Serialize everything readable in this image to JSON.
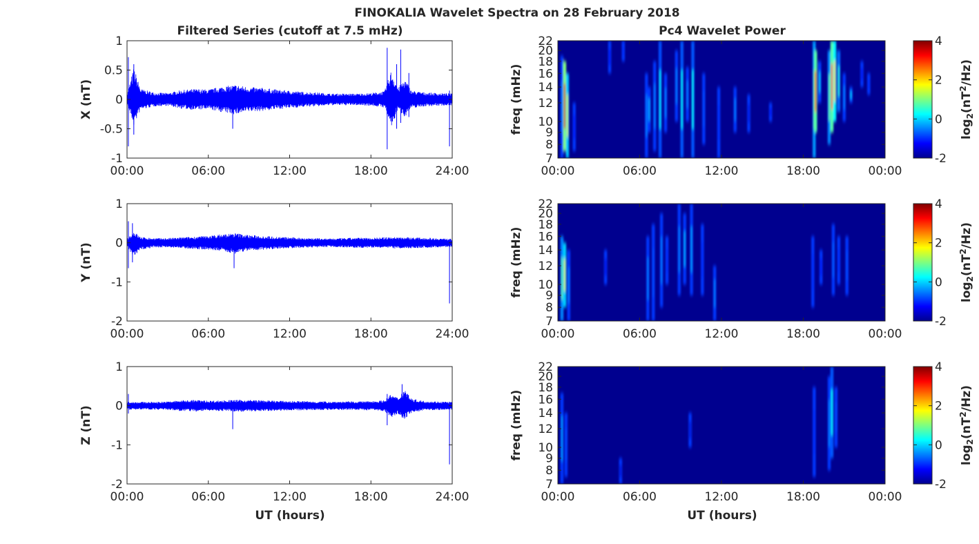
{
  "figure_title": "FINOKALIA Wavelet Spectra on 28 February 2018",
  "left_column_title": "Filtered Series (cutoff at 7.5 mHz)",
  "right_column_title": "Pc4 Wavelet Power",
  "xlabel": "UT (hours)",
  "colors": {
    "series": "#0000ff",
    "spectrogram_background": "#00008f",
    "axis": "#262626"
  },
  "chart_data": [
    {
      "type": "line",
      "component": "X",
      "ylabel": "X (nT)",
      "color": "#0000ff",
      "ylim": [
        -1,
        1
      ],
      "yticks": [
        "1",
        "0.5",
        "0",
        "-0.5",
        "-1"
      ],
      "ytick_values": [
        1,
        0.5,
        0,
        -0.5,
        -1
      ],
      "xlim_hours": [
        0,
        24
      ],
      "xticks": [
        "00:00",
        "06:00",
        "12:00",
        "18:00",
        "24:00"
      ],
      "xtick_hours": [
        0,
        6,
        12,
        18,
        24
      ],
      "envelope": {
        "hours": [
          0,
          0.5,
          1,
          2,
          3,
          4,
          5,
          6,
          7,
          8,
          9,
          10,
          11,
          12,
          13,
          14,
          15,
          16,
          17,
          18,
          19,
          19.5,
          20,
          20.5,
          21,
          22,
          23,
          24
        ],
        "upper": [
          0.08,
          0.55,
          0.18,
          0.12,
          0.11,
          0.16,
          0.18,
          0.17,
          0.22,
          0.25,
          0.21,
          0.2,
          0.17,
          0.15,
          0.13,
          0.12,
          0.1,
          0.1,
          0.1,
          0.11,
          0.14,
          0.5,
          0.2,
          0.35,
          0.15,
          0.12,
          0.11,
          0.1
        ],
        "lower": [
          -0.08,
          -0.45,
          -0.18,
          -0.12,
          -0.11,
          -0.16,
          -0.18,
          -0.17,
          -0.22,
          -0.26,
          -0.21,
          -0.2,
          -0.17,
          -0.15,
          -0.13,
          -0.12,
          -0.1,
          -0.1,
          -0.1,
          -0.11,
          -0.14,
          -0.5,
          -0.18,
          -0.3,
          -0.15,
          -0.12,
          -0.11,
          -0.1
        ]
      },
      "spikes": [
        [
          0.1,
          -0.8,
          0.72
        ],
        [
          0.5,
          -0.6,
          0.6
        ],
        [
          7.8,
          -0.5,
          0.1
        ],
        [
          19.2,
          -0.85,
          0.88
        ],
        [
          19.9,
          -0.5,
          0.6
        ],
        [
          20.2,
          -0.4,
          0.85
        ],
        [
          20.8,
          -0.3,
          0.45
        ],
        [
          23.8,
          -0.8,
          0.15
        ]
      ]
    },
    {
      "type": "line",
      "component": "Y",
      "ylabel": "Y (nT)",
      "color": "#0000ff",
      "ylim": [
        -2,
        1
      ],
      "yticks": [
        "1",
        "0",
        "-1",
        "-2"
      ],
      "ytick_values": [
        1,
        0,
        -1,
        -2
      ],
      "xlim_hours": [
        0,
        24
      ],
      "xticks": [
        "00:00",
        "06:00",
        "12:00",
        "18:00",
        "24:00"
      ],
      "xtick_hours": [
        0,
        6,
        12,
        18,
        24
      ],
      "envelope": {
        "hours": [
          0,
          0.5,
          1,
          2,
          3,
          4,
          5,
          6,
          7,
          8,
          9,
          10,
          11,
          12,
          13,
          14,
          15,
          16,
          17,
          18,
          19,
          20,
          21,
          22,
          23,
          24
        ],
        "upper": [
          0.1,
          0.3,
          0.15,
          0.12,
          0.12,
          0.14,
          0.16,
          0.18,
          0.22,
          0.25,
          0.2,
          0.18,
          0.16,
          0.14,
          0.13,
          0.12,
          0.11,
          0.12,
          0.13,
          0.13,
          0.14,
          0.15,
          0.14,
          0.13,
          0.12,
          0.1
        ],
        "lower": [
          -0.1,
          -0.4,
          -0.18,
          -0.12,
          -0.12,
          -0.14,
          -0.16,
          -0.18,
          -0.22,
          -0.28,
          -0.2,
          -0.18,
          -0.16,
          -0.14,
          -0.13,
          -0.12,
          -0.11,
          -0.12,
          -0.13,
          -0.13,
          -0.14,
          -0.15,
          -0.14,
          -0.13,
          -0.12,
          -0.1
        ]
      },
      "spikes": [
        [
          0.1,
          -0.65,
          0.55
        ],
        [
          0.4,
          -0.5,
          0.5
        ],
        [
          7.9,
          -0.65,
          0.1
        ],
        [
          23.8,
          -1.55,
          0.1
        ]
      ]
    },
    {
      "type": "line",
      "component": "Z",
      "ylabel": "Z (nT)",
      "color": "#0000ff",
      "ylim": [
        -2,
        1
      ],
      "yticks": [
        "1",
        "0",
        "-1",
        "-2"
      ],
      "ytick_values": [
        1,
        0,
        -1,
        -2
      ],
      "xlim_hours": [
        0,
        24
      ],
      "xticks": [
        "00:00",
        "06:00",
        "12:00",
        "18:00",
        "24:00"
      ],
      "xtick_hours": [
        0,
        6,
        12,
        18,
        24
      ],
      "envelope": {
        "hours": [
          0,
          1,
          2,
          3,
          4,
          5,
          6,
          7,
          8,
          9,
          10,
          11,
          12,
          13,
          14,
          15,
          16,
          17,
          18,
          19,
          19.5,
          20,
          20.5,
          21,
          22,
          23,
          24
        ],
        "upper": [
          0.1,
          0.1,
          0.1,
          0.11,
          0.14,
          0.15,
          0.13,
          0.14,
          0.15,
          0.15,
          0.14,
          0.13,
          0.12,
          0.12,
          0.11,
          0.11,
          0.11,
          0.11,
          0.12,
          0.14,
          0.3,
          0.2,
          0.45,
          0.18,
          0.12,
          0.11,
          0.1
        ],
        "lower": [
          -0.1,
          -0.1,
          -0.1,
          -0.11,
          -0.14,
          -0.15,
          -0.13,
          -0.14,
          -0.15,
          -0.15,
          -0.14,
          -0.13,
          -0.12,
          -0.12,
          -0.11,
          -0.11,
          -0.11,
          -0.11,
          -0.12,
          -0.14,
          -0.3,
          -0.2,
          -0.35,
          -0.18,
          -0.12,
          -0.11,
          -0.1
        ]
      },
      "spikes": [
        [
          0.1,
          -0.2,
          0.3
        ],
        [
          7.8,
          -0.6,
          0.1
        ],
        [
          19.2,
          -0.5,
          0.3
        ],
        [
          20.3,
          -0.3,
          0.55
        ],
        [
          23.8,
          -1.5,
          0.1
        ]
      ]
    },
    {
      "type": "heatmap",
      "component": "X",
      "title": "Pc4 Wavelet Power",
      "ylabel": "freq (mHz)",
      "ylim_mhz": [
        7,
        22
      ],
      "yticks": [
        "22",
        "20",
        "18",
        "16",
        "14",
        "12",
        "10",
        "9",
        "8",
        "7"
      ],
      "ytick_values": [
        22,
        20,
        18,
        16,
        14,
        12,
        10,
        9,
        8,
        7
      ],
      "xticks": [
        "00:00",
        "06:00",
        "12:00",
        "18:00",
        "00:00"
      ],
      "xtick_hours": [
        0,
        6,
        12,
        18,
        24
      ],
      "colorbar": {
        "label": "log2(nT2/Hz)",
        "ticks": [
          "4",
          "2",
          "0",
          "-2"
        ],
        "tick_values": [
          4,
          2,
          0,
          -2
        ],
        "range": [
          -2,
          4
        ],
        "colormap": "jet"
      },
      "bursts": [
        [
          0.3,
          7,
          19,
          -0.5
        ],
        [
          0.5,
          7.5,
          18,
          3.5
        ],
        [
          0.7,
          7,
          16,
          1.5
        ],
        [
          1.2,
          7.5,
          12,
          -1.2
        ],
        [
          3.8,
          16,
          22,
          -1.3
        ],
        [
          4.8,
          18,
          22,
          -1.0
        ],
        [
          6.5,
          7,
          16,
          -0.5
        ],
        [
          6.7,
          9,
          14,
          -0.2
        ],
        [
          7.1,
          7.5,
          18,
          -0.5
        ],
        [
          7.5,
          7,
          22,
          0.2
        ],
        [
          7.9,
          9,
          16,
          -0.5
        ],
        [
          8.7,
          10,
          20,
          -0.5
        ],
        [
          9.1,
          7,
          22,
          0.3
        ],
        [
          9.5,
          10,
          17,
          -0.5
        ],
        [
          9.9,
          7,
          22,
          0.3
        ],
        [
          10.7,
          8,
          16,
          -0.8
        ],
        [
          11.8,
          7,
          14,
          -1.0
        ],
        [
          13.0,
          9,
          14,
          -0.5
        ],
        [
          14.0,
          9,
          13,
          -1.4
        ],
        [
          15.6,
          10,
          12,
          -1.3
        ],
        [
          18.8,
          7,
          22,
          1.0
        ],
        [
          18.9,
          9,
          20,
          3.0
        ],
        [
          19.2,
          12,
          18,
          0.0
        ],
        [
          19.9,
          8,
          20,
          0.8
        ],
        [
          20.1,
          9,
          22,
          3.0
        ],
        [
          20.3,
          10,
          22,
          2.0
        ],
        [
          20.6,
          11,
          20,
          0.5
        ],
        [
          21.0,
          10,
          16,
          -0.5
        ],
        [
          21.5,
          12,
          14,
          0.0
        ],
        [
          22.3,
          14,
          18,
          -1.3
        ],
        [
          22.8,
          13,
          16,
          -1.0
        ]
      ]
    },
    {
      "type": "heatmap",
      "component": "Y",
      "title": "",
      "ylabel": "freq (mHz)",
      "ylim_mhz": [
        7,
        22
      ],
      "yticks": [
        "22",
        "20",
        "18",
        "16",
        "14",
        "12",
        "10",
        "9",
        "8",
        "7"
      ],
      "ytick_values": [
        22,
        20,
        18,
        16,
        14,
        12,
        10,
        9,
        8,
        7
      ],
      "xticks": [
        "00:00",
        "06:00",
        "12:00",
        "18:00",
        "00:00"
      ],
      "xtick_hours": [
        0,
        6,
        12,
        18,
        24
      ],
      "colorbar": {
        "label": "log2(nT2/Hz)",
        "ticks": [
          "4",
          "2",
          "0",
          "-2"
        ],
        "tick_values": [
          4,
          2,
          0,
          -2
        ],
        "range": [
          -2,
          4
        ],
        "colormap": "jet"
      },
      "bursts": [
        [
          0.3,
          7,
          16,
          0.8
        ],
        [
          0.5,
          8,
          15,
          1.6
        ],
        [
          0.8,
          7,
          14,
          -0.5
        ],
        [
          3.5,
          10,
          14,
          -1.4
        ],
        [
          6.6,
          7,
          16,
          -0.5
        ],
        [
          7.0,
          7,
          18,
          -0.8
        ],
        [
          7.6,
          8,
          20,
          -0.5
        ],
        [
          8.0,
          10,
          16,
          -1.0
        ],
        [
          8.9,
          9,
          22,
          -0.5
        ],
        [
          9.3,
          10,
          20,
          -0.2
        ],
        [
          9.8,
          9,
          22,
          -0.3
        ],
        [
          10.6,
          9,
          18,
          -1.0
        ],
        [
          11.5,
          7,
          12,
          -0.5
        ],
        [
          18.7,
          8,
          16,
          -1.0
        ],
        [
          19.3,
          10,
          14,
          -1.2
        ],
        [
          20.2,
          9,
          18,
          -0.7
        ],
        [
          20.6,
          10,
          16,
          -1.0
        ],
        [
          21.2,
          9,
          16,
          -0.8
        ]
      ]
    },
    {
      "type": "heatmap",
      "component": "Z",
      "title": "",
      "ylabel": "freq (mHz)",
      "ylim_mhz": [
        7,
        22
      ],
      "yticks": [
        "22",
        "20",
        "18",
        "16",
        "14",
        "12",
        "10",
        "9",
        "8",
        "7"
      ],
      "ytick_values": [
        22,
        20,
        18,
        16,
        14,
        12,
        10,
        9,
        8,
        7
      ],
      "xticks": [
        "00:00",
        "06:00",
        "12:00",
        "18:00",
        "00:00"
      ],
      "xtick_hours": [
        0,
        6,
        12,
        18,
        24
      ],
      "colorbar": {
        "label": "log2(nT2/Hz)",
        "ticks": [
          "4",
          "2",
          "0",
          "-2"
        ],
        "tick_values": [
          4,
          2,
          0,
          -2
        ],
        "range": [
          -2,
          4
        ],
        "colormap": "jet"
      },
      "bursts": [
        [
          0.3,
          7,
          17,
          -0.3
        ],
        [
          0.6,
          7.5,
          14,
          -0.8
        ],
        [
          4.6,
          7,
          9,
          -1.5
        ],
        [
          9.7,
          10,
          14,
          -1.5
        ],
        [
          18.8,
          7.5,
          18,
          -1.0
        ],
        [
          19.9,
          8,
          20,
          -0.5
        ],
        [
          20.1,
          9,
          22,
          0.3
        ],
        [
          20.4,
          10,
          18,
          -0.8
        ]
      ]
    }
  ]
}
